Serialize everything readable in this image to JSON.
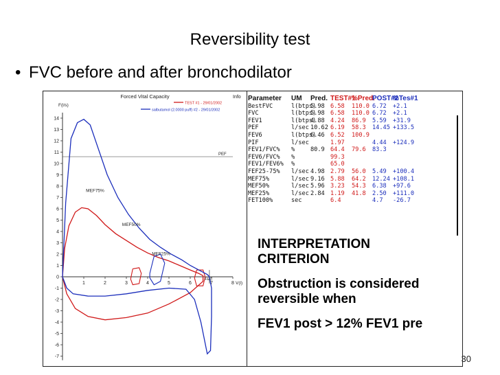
{
  "slide": {
    "title": "Reversibility test",
    "bullet_symbol": "•",
    "bullet": "FVC before and after bronchodilator",
    "page_number": "30"
  },
  "chart_data": {
    "type": "line",
    "title": "Forced Vital Capacity",
    "corner_tag": "Info",
    "ylabel": "F(l/s)",
    "xlabel": "V(l)",
    "xlim": [
      0,
      8
    ],
    "ylim": [
      -7,
      14
    ],
    "x_ticks": [
      "1",
      "2",
      "3",
      "4",
      "5",
      "6",
      "7",
      "8"
    ],
    "y_ticks": [
      "14",
      "13",
      "12",
      "11",
      "10",
      "9",
      "8",
      "7",
      "6",
      "5",
      "4",
      "3",
      "2",
      "1",
      "0",
      "-1",
      "-2",
      "-3",
      "-4",
      "-5",
      "-6",
      "-7"
    ],
    "reference_lines": [
      {
        "name": "PEF",
        "y": 10.6
      },
      {
        "name": "FEC",
        "x": 6.9
      }
    ],
    "annotations": [
      {
        "text": "MEF75%",
        "x": 1.1,
        "y": 7.5
      },
      {
        "text": "MEF50%",
        "x": 2.8,
        "y": 4.5
      },
      {
        "text": "MEF25%",
        "x": 4.2,
        "y": 1.9
      }
    ],
    "legend": [
      "TEST #1 - 29/01/2002",
      "salbutamol (2.0000 puff) #2 - 29/01/2002"
    ],
    "colors": {
      "test1": "#d01818",
      "post": "#1a2dbb",
      "text": "#222222"
    },
    "series": [
      {
        "name": "TEST #1",
        "expiratory": [
          [
            0,
            0
          ],
          [
            0.1,
            2.5
          ],
          [
            0.3,
            4.5
          ],
          [
            0.6,
            5.7
          ],
          [
            0.9,
            6.1
          ],
          [
            1.2,
            6.0
          ],
          [
            1.6,
            5.4
          ],
          [
            2.0,
            4.6
          ],
          [
            2.5,
            3.8
          ],
          [
            3.0,
            3.2
          ],
          [
            3.5,
            2.6
          ],
          [
            4.0,
            2.1
          ],
          [
            4.5,
            1.7
          ],
          [
            5.0,
            1.4
          ],
          [
            5.5,
            1.0
          ],
          [
            6.0,
            0.6
          ],
          [
            6.4,
            0.3
          ],
          [
            6.6,
            0.1
          ]
        ],
        "inspiratory": [
          [
            0,
            0
          ],
          [
            0.2,
            -1.5
          ],
          [
            0.6,
            -2.8
          ],
          [
            1.2,
            -3.5
          ],
          [
            2.0,
            -3.8
          ],
          [
            3.0,
            -3.6
          ],
          [
            4.0,
            -3.2
          ],
          [
            5.0,
            -2.4
          ],
          [
            6.0,
            -1.4
          ],
          [
            6.6,
            -0.4
          ],
          [
            6.6,
            0.1
          ]
        ],
        "small_loops": [
          [
            [
              3.3,
              0.7
            ],
            [
              3.6,
              0.8
            ],
            [
              3.7,
              0.3
            ],
            [
              3.6,
              -0.6
            ],
            [
              3.3,
              -0.7
            ],
            [
              3.2,
              -0.2
            ],
            [
              3.3,
              0.7
            ]
          ],
          [
            [
              6.3,
              0.6
            ],
            [
              6.6,
              0.6
            ],
            [
              6.7,
              0.0
            ],
            [
              6.6,
              -0.8
            ],
            [
              6.3,
              -0.8
            ],
            [
              6.2,
              -0.1
            ],
            [
              6.3,
              0.6
            ]
          ]
        ]
      },
      {
        "name": "salbutamol #2",
        "expiratory": [
          [
            0,
            0
          ],
          [
            0.15,
            6.5
          ],
          [
            0.4,
            12.2
          ],
          [
            0.7,
            13.6
          ],
          [
            1.0,
            13.9
          ],
          [
            1.3,
            13.4
          ],
          [
            1.7,
            11.2
          ],
          [
            2.1,
            9.0
          ],
          [
            2.6,
            7.0
          ],
          [
            3.1,
            5.5
          ],
          [
            3.6,
            4.3
          ],
          [
            4.1,
            3.3
          ],
          [
            4.6,
            2.6
          ],
          [
            5.1,
            2.0
          ],
          [
            5.6,
            1.5
          ],
          [
            6.0,
            1.0
          ],
          [
            6.4,
            0.6
          ],
          [
            6.8,
            0.2
          ],
          [
            6.9,
            0
          ]
        ],
        "inspiratory": [
          [
            0,
            0
          ],
          [
            0.2,
            -1.0
          ],
          [
            0.5,
            -1.5
          ],
          [
            1.2,
            -1.7
          ],
          [
            2.0,
            -1.7
          ],
          [
            3.0,
            -1.5
          ],
          [
            4.0,
            -1.2
          ],
          [
            5.0,
            -1.0
          ],
          [
            5.8,
            -1.1
          ],
          [
            6.2,
            -2.0
          ],
          [
            6.5,
            -4.0
          ],
          [
            6.8,
            -6.8
          ],
          [
            6.95,
            -6.5
          ],
          [
            7.0,
            -3.5
          ],
          [
            7.0,
            -1.0
          ],
          [
            6.9,
            0
          ]
        ],
        "small_loops": [
          [
            [
              4.1,
              0.3
            ],
            [
              4.3,
              1.8
            ],
            [
              4.6,
              2.0
            ],
            [
              4.8,
              1.2
            ],
            [
              4.6,
              -0.4
            ],
            [
              4.3,
              -0.7
            ],
            [
              4.1,
              -0.1
            ],
            [
              4.1,
              0.3
            ]
          ]
        ]
      }
    ],
    "table": {
      "columns": [
        "Parameter",
        "UM",
        "Pred.",
        "TEST#1",
        "%Pred.",
        "POST#2",
        "%Tes#1"
      ],
      "rows": [
        [
          "BestFVC",
          "l(btps)",
          "5.98",
          "6.58",
          "110.0",
          "6.72",
          "+2.1"
        ],
        [
          "FVC",
          "l(btps)",
          "5.98",
          "6.58",
          "110.0",
          "6.72",
          "+2.1"
        ],
        [
          "FEV1",
          "l(btps)",
          "4.88",
          "4.24",
          "86.9",
          "5.59",
          "+31.9"
        ],
        [
          "PEF",
          "l/sec",
          "10.62",
          "6.19",
          "58.3",
          "14.45",
          "+133.5"
        ],
        [
          "FEV6",
          "l(btps)",
          "6.46",
          "6.52",
          "100.9",
          "",
          ""
        ],
        [
          "PIF",
          "l/sec",
          "",
          "1.97",
          "",
          "4.44",
          "+124.9"
        ],
        [
          "FEV1/FVC%",
          "%",
          "80.9",
          "64.4",
          "79.6",
          "83.3",
          ""
        ],
        [
          "FEV6/FVC%",
          "%",
          "",
          "99.3",
          "",
          "",
          ""
        ],
        [
          "FEV1/FEV6%",
          "%",
          "",
          "65.0",
          "",
          "",
          ""
        ],
        [
          "FEF25-75%",
          "l/sec",
          "4.98",
          "2.79",
          "56.0",
          "5.49",
          "+100.4"
        ],
        [
          "MEF75%",
          "l/sec",
          "9.16",
          "5.88",
          "64.2",
          "12.24",
          "+108.1"
        ],
        [
          "MEF50%",
          "l/sec",
          "5.96",
          "3.23",
          "54.3",
          "6.38",
          "+97.6"
        ],
        [
          "MEF25%",
          "l/sec",
          "2.84",
          "1.19",
          "41.8",
          "2.50",
          "+111.0"
        ],
        [
          "FET100%",
          "sec",
          "",
          "6.4",
          "",
          "4.7",
          "-26.7"
        ]
      ]
    }
  },
  "interpretation": {
    "line1": "INTERPRETATION",
    "line2": "CRITERION",
    "line3": "Obstruction is considered",
    "line4": "reversible when",
    "line5": "FEV1 post > 12% FEV1 pre"
  }
}
